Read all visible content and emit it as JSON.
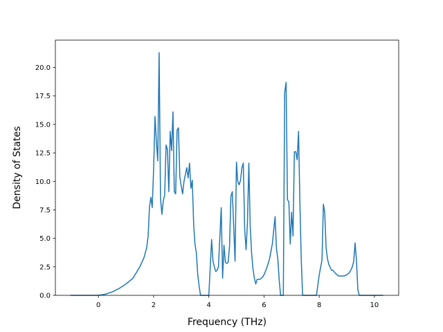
{
  "chart_data": {
    "type": "line",
    "title": "",
    "xlabel": "Frequency (THz)",
    "ylabel": "Density of States",
    "xlim": [
      -1.56,
      10.88
    ],
    "ylim": [
      0,
      22.4
    ],
    "grid": false,
    "x_ticks": [
      0,
      2,
      4,
      6,
      8,
      10
    ],
    "x_tick_labels": [
      "0",
      "2",
      "4",
      "6",
      "8",
      "10"
    ],
    "y_ticks": [
      0,
      2.5,
      5,
      7.5,
      10,
      12.5,
      15,
      17.5,
      20
    ],
    "y_tick_labels": [
      "0.0",
      "2.5",
      "5.0",
      "7.5",
      "10.0",
      "12.5",
      "15.0",
      "17.5",
      "20.0"
    ],
    "series": [
      {
        "color": "#1f77b4",
        "x": [
          -1.0,
          -0.5,
          0.0,
          0.25,
          0.5,
          0.75,
          1.0,
          1.25,
          1.5,
          1.65,
          1.75,
          1.8,
          1.85,
          1.9,
          1.95,
          2.0,
          2.05,
          2.1,
          2.15,
          2.2,
          2.25,
          2.3,
          2.35,
          2.4,
          2.45,
          2.5,
          2.55,
          2.6,
          2.65,
          2.7,
          2.75,
          2.8,
          2.85,
          2.9,
          2.95,
          3.0,
          3.05,
          3.1,
          3.15,
          3.2,
          3.25,
          3.3,
          3.35,
          3.4,
          3.45,
          3.5,
          3.55,
          3.6,
          3.65,
          3.7,
          3.8,
          3.9,
          4.0,
          4.1,
          4.15,
          4.2,
          4.25,
          4.3,
          4.35,
          4.45,
          4.5,
          4.55,
          4.6,
          4.65,
          4.7,
          4.75,
          4.8,
          4.85,
          4.95,
          5.0,
          5.05,
          5.1,
          5.15,
          5.2,
          5.25,
          5.3,
          5.35,
          5.4,
          5.45,
          5.5,
          5.55,
          5.6,
          5.65,
          5.7,
          5.75,
          5.8,
          5.85,
          5.9,
          5.95,
          6.0,
          6.1,
          6.2,
          6.3,
          6.4,
          6.45,
          6.5,
          6.55,
          6.6,
          6.65,
          6.7,
          6.75,
          6.8,
          6.85,
          6.9,
          6.95,
          7.0,
          7.05,
          7.1,
          7.15,
          7.2,
          7.25,
          7.3,
          7.35,
          7.4,
          7.45,
          7.5,
          7.55,
          7.6,
          7.65,
          7.7,
          7.8,
          7.9,
          8.0,
          8.1,
          8.15,
          8.2,
          8.25,
          8.3,
          8.35,
          8.45,
          8.5,
          8.6,
          8.7,
          8.8,
          8.9,
          9.0,
          9.1,
          9.2,
          9.25,
          9.3,
          9.35,
          9.4,
          9.45,
          9.5,
          10.0,
          10.3
        ],
        "y": [
          0,
          0,
          0,
          0.1,
          0.3,
          0.6,
          1.0,
          1.5,
          2.5,
          3.3,
          4.2,
          5.2,
          7.8,
          8.6,
          7.7,
          11.0,
          15.7,
          13.5,
          11.8,
          21.3,
          8.5,
          7.1,
          8.3,
          8.8,
          13.2,
          12.8,
          9.1,
          14.4,
          12.7,
          16.1,
          9.1,
          8.9,
          14.5,
          14.7,
          10.4,
          9.6,
          8.9,
          10.0,
          10.6,
          11.2,
          10.3,
          11.6,
          9.4,
          10.1,
          6.2,
          4.5,
          3.7,
          1.8,
          0.8,
          0,
          0,
          0,
          0,
          4.9,
          3.0,
          2.5,
          2.1,
          2.2,
          2.5,
          7.7,
          1.5,
          4.4,
          2.9,
          2.8,
          2.9,
          4.3,
          8.7,
          9.1,
          3.0,
          11.7,
          10.0,
          9.7,
          10.1,
          11.2,
          11.6,
          5.8,
          4.0,
          6.4,
          11.6,
          6.0,
          3.7,
          2.3,
          1.5,
          1.0,
          1.4,
          1.4,
          1.4,
          1.5,
          1.6,
          1.8,
          2.4,
          3.2,
          4.5,
          6.9,
          4.1,
          3.2,
          1.3,
          0,
          0,
          0,
          17.8,
          18.7,
          8.4,
          8.2,
          4.5,
          7.3,
          5.2,
          12.6,
          12.6,
          11.9,
          14.4,
          8.0,
          3.0,
          0,
          0,
          0,
          0,
          0,
          0,
          0,
          0,
          0,
          1.8,
          3.1,
          8.0,
          7.3,
          4.2,
          3.2,
          2.7,
          2.2,
          2.2,
          1.9,
          1.7,
          1.7,
          1.7,
          1.8,
          2.0,
          2.5,
          3.0,
          4.6,
          3.0,
          0.5,
          0,
          0,
          0,
          0
        ]
      }
    ]
  }
}
